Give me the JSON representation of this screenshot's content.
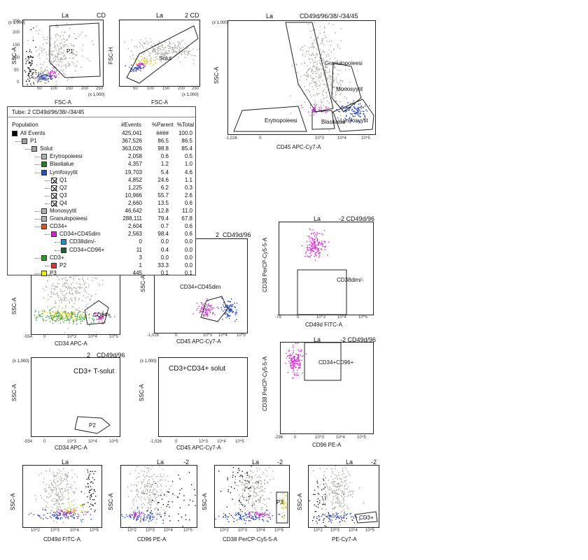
{
  "chart_data": [
    {
      "type": "scatter",
      "id": "p1",
      "header": "La",
      "header2": "CD",
      "xlabel": "FSC-A",
      "ylabel": "SSC-A",
      "x_ticks": [
        "50",
        "100",
        "150",
        "200",
        "250"
      ],
      "y_ticks": [
        "0",
        "50",
        "100",
        "150",
        "200",
        "250"
      ],
      "scale_label": "(x 1,000)",
      "gates": [
        "P1"
      ],
      "pops": [
        {
          "color": "#a8a8a0",
          "cx": 0.45,
          "cy": 0.5,
          "sx": 0.15,
          "sy": 0.22,
          "n": 260
        },
        {
          "color": "#7a7a72",
          "cx": 0.2,
          "cy": 0.85,
          "sx": 0.06,
          "sy": 0.05,
          "n": 70
        },
        {
          "color": "#2040c0",
          "cx": 0.28,
          "cy": 0.85,
          "sx": 0.06,
          "sy": 0.03,
          "n": 50
        },
        {
          "color": "#d020d0",
          "cx": 0.35,
          "cy": 0.82,
          "sx": 0.04,
          "sy": 0.03,
          "n": 25
        },
        {
          "color": "#111111",
          "cx": 0.08,
          "cy": 0.75,
          "sx": 0.03,
          "sy": 0.2,
          "n": 80
        }
      ]
    },
    {
      "type": "scatter",
      "id": "solut",
      "header": "La",
      "header2": "2 CD",
      "xlabel": "FSC-A",
      "ylabel": "FSC-H",
      "x_ticks": [
        "50",
        "100",
        "150",
        "200",
        "250"
      ],
      "y_ticks": [
        "0",
        "50",
        "100",
        "150",
        "200",
        "250"
      ],
      "scale_label": "(x 1,000)",
      "gates": [
        "Solut"
      ],
      "pops": [
        {
          "color": "#a8a8a0",
          "cx": 0.55,
          "cy": 0.45,
          "sx": 0.2,
          "sy": 0.08,
          "n": 240
        },
        {
          "color": "#e0c020",
          "cx": 0.3,
          "cy": 0.62,
          "sx": 0.06,
          "sy": 0.04,
          "n": 40
        },
        {
          "color": "#d020d0",
          "cx": 0.25,
          "cy": 0.68,
          "sx": 0.04,
          "sy": 0.03,
          "n": 25
        },
        {
          "color": "#2040c0",
          "cx": 0.2,
          "cy": 0.72,
          "sx": 0.05,
          "sy": 0.03,
          "n": 40
        }
      ]
    },
    {
      "type": "scatter",
      "id": "cd45ssc",
      "header": "La",
      "header2": "CD49d/96/38/-/34/45",
      "xlabel": "CD45 APC-Cy7-A",
      "ylabel": "SSC-A",
      "x_ticks": [
        "-1,026",
        "0",
        "10^3",
        "10^4",
        "10^5"
      ],
      "y_ticks": [
        "0",
        "50",
        "100",
        "150",
        "200",
        "250"
      ],
      "scale_label": "(x 1,000)",
      "gates": [
        "Granulopoieesi",
        "Monosyytit",
        "Erytropoieesi",
        "Blastialue",
        "Lymfosyytit"
      ],
      "pops": [
        {
          "color": "#a8a8a0",
          "cx": 0.62,
          "cy": 0.4,
          "sx": 0.07,
          "sy": 0.18,
          "n": 320
        },
        {
          "color": "#2040c0",
          "cx": 0.85,
          "cy": 0.8,
          "sx": 0.05,
          "sy": 0.04,
          "n": 120
        },
        {
          "color": "#d020d0",
          "cx": 0.6,
          "cy": 0.78,
          "sx": 0.04,
          "sy": 0.02,
          "n": 40
        },
        {
          "color": "#a8a8a0",
          "cx": 0.75,
          "cy": 0.6,
          "sx": 0.05,
          "sy": 0.08,
          "n": 60
        }
      ]
    },
    {
      "type": "scatter",
      "id": "cd34ssc",
      "header": "",
      "header2": "",
      "xlabel": "CD34 APC-A",
      "ylabel": "SSC-A",
      "x_ticks": [
        "-554",
        "0",
        "10^3",
        "10^4",
        "10^5"
      ],
      "y_ticks": [],
      "scale_label": "",
      "gates": [
        "CD34+"
      ],
      "pops": [
        {
          "color": "#a8a8a0",
          "cx": 0.4,
          "cy": 0.3,
          "sx": 0.15,
          "sy": 0.2,
          "n": 260
        },
        {
          "color": "#30a030",
          "cx": 0.4,
          "cy": 0.72,
          "sx": 0.2,
          "sy": 0.04,
          "n": 200
        },
        {
          "color": "#e0d020",
          "cx": 0.35,
          "cy": 0.68,
          "sx": 0.15,
          "sy": 0.04,
          "n": 60
        },
        {
          "color": "#d020d0",
          "cx": 0.78,
          "cy": 0.72,
          "sx": 0.05,
          "sy": 0.04,
          "n": 40
        }
      ]
    },
    {
      "type": "scatter",
      "id": "cd34cd45",
      "header": "2",
      "header2": "CD49d/96",
      "xlabel": "CD45 APC-Cy7-A",
      "ylabel": "SSC-A",
      "x_ticks": [
        "-1,026",
        "0",
        "10^3",
        "10^4",
        "10^5"
      ],
      "y_ticks": [],
      "scale_label": "",
      "gates": [
        "CD34+CD45dim"
      ],
      "pops": [
        {
          "color": "#d020d0",
          "cx": 0.55,
          "cy": 0.75,
          "sx": 0.05,
          "sy": 0.04,
          "n": 80
        },
        {
          "color": "#2040c0",
          "cx": 0.8,
          "cy": 0.75,
          "sx": 0.04,
          "sy": 0.05,
          "n": 90
        }
      ]
    },
    {
      "type": "scatter",
      "id": "cd49dcd38",
      "header": "La",
      "header2": "-2 CD49d/96",
      "xlabel": "CD49d FITC-A",
      "ylabel": "CD38 PerCP-Cy5-5-A",
      "x_ticks": [
        "-79",
        "0",
        "10^3",
        "10^4",
        "10^5"
      ],
      "y_ticks": [],
      "scale_label": "",
      "gates": [
        "CD38dim/-"
      ],
      "pops": [
        {
          "color": "#d020d0",
          "cx": 0.38,
          "cy": 0.25,
          "sx": 0.06,
          "sy": 0.07,
          "n": 150
        }
      ]
    },
    {
      "type": "scatter",
      "id": "cd3t",
      "header": "2",
      "header2": "CD49d/96",
      "xlabel": "CD34 APC-A",
      "ylabel": "SSC-A",
      "x_ticks": [
        "-554",
        "0",
        "10^3",
        "10^4",
        "10^5"
      ],
      "y_ticks": [
        "0",
        "50",
        "100",
        "150",
        "200",
        "250"
      ],
      "scale_label": "(x 1,000)",
      "title": "CD3+ T-solut",
      "gates": [
        "P2"
      ],
      "pops": []
    },
    {
      "type": "scatter",
      "id": "cd3cd34",
      "header": "",
      "header2": "",
      "xlabel": "CD45 APC-Cy7-A",
      "ylabel": "SSC-A",
      "x_ticks": [
        "-1,026",
        "0",
        "10^3",
        "10^4",
        "10^5"
      ],
      "y_ticks": [
        "0",
        "50",
        "100",
        "150",
        "200",
        "250"
      ],
      "scale_label": "(x 1,000)",
      "title": "CD3+CD34+ solut",
      "gates": [],
      "pops": []
    },
    {
      "type": "scatter",
      "id": "cd96cd38",
      "header": "La",
      "header2": "-2 CD49d/96",
      "xlabel": "CD96 PE-A",
      "ylabel": "CD38 PerCP-Cy5-5-A",
      "x_ticks": [
        "-296",
        "0",
        "10^3",
        "10^4",
        "10^5"
      ],
      "y_ticks": [],
      "scale_label": "",
      "gates": [
        "CD34+CD96+"
      ],
      "pops": [
        {
          "color": "#d020d0",
          "cx": 0.15,
          "cy": 0.2,
          "sx": 0.04,
          "sy": 0.08,
          "n": 140
        }
      ]
    },
    {
      "type": "scatter",
      "id": "b1",
      "header": "La",
      "header2": "",
      "xlabel": "CD49d FITC-A",
      "ylabel": "SSC-A",
      "x_ticks": [
        "10^2",
        "10^3",
        "10^4",
        "10^5"
      ],
      "y_ticks": [],
      "scale_label": "",
      "gates": [],
      "pops": [
        {
          "color": "#a8a8a0",
          "cx": 0.45,
          "cy": 0.4,
          "sx": 0.12,
          "sy": 0.22,
          "n": 220
        },
        {
          "color": "#2040c0",
          "cx": 0.5,
          "cy": 0.8,
          "sx": 0.18,
          "sy": 0.04,
          "n": 90
        },
        {
          "color": "#d020d0",
          "cx": 0.55,
          "cy": 0.76,
          "sx": 0.1,
          "sy": 0.03,
          "n": 40
        },
        {
          "color": "#e0d020",
          "cx": 0.65,
          "cy": 0.7,
          "sx": 0.08,
          "sy": 0.04,
          "n": 40
        },
        {
          "color": "#111111",
          "cx": 0.85,
          "cy": 0.35,
          "sx": 0.04,
          "sy": 0.2,
          "n": 60
        }
      ]
    },
    {
      "type": "scatter",
      "id": "b2",
      "header": "La",
      "header2": "-2",
      "xlabel": "CD96 PE-A",
      "ylabel": "SSC-A",
      "x_ticks": [
        "10^2",
        "10^3",
        "10^4",
        "10^5"
      ],
      "y_ticks": [],
      "scale_label": "",
      "gates": [],
      "pops": [
        {
          "color": "#a8a8a0",
          "cx": 0.35,
          "cy": 0.4,
          "sx": 0.12,
          "sy": 0.22,
          "n": 220
        },
        {
          "color": "#2040c0",
          "cx": 0.3,
          "cy": 0.82,
          "sx": 0.12,
          "sy": 0.04,
          "n": 80
        },
        {
          "color": "#d020d0",
          "cx": 0.2,
          "cy": 0.8,
          "sx": 0.05,
          "sy": 0.03,
          "n": 20
        },
        {
          "color": "#111111",
          "cx": 0.7,
          "cy": 0.55,
          "sx": 0.2,
          "sy": 0.25,
          "n": 60
        }
      ]
    },
    {
      "type": "scatter",
      "id": "b3",
      "header": "La",
      "header2": "-2",
      "xlabel": "CD38 PerCP-Cy5-5-A",
      "ylabel": "SSC-A",
      "x_ticks": [
        "10^2",
        "10^3",
        "10^4",
        "10^5"
      ],
      "y_ticks": [],
      "scale_label": "",
      "gates": [
        "P3"
      ],
      "pops": [
        {
          "color": "#a8a8a0",
          "cx": 0.5,
          "cy": 0.4,
          "sx": 0.12,
          "sy": 0.22,
          "n": 220
        },
        {
          "color": "#2040c0",
          "cx": 0.45,
          "cy": 0.82,
          "sx": 0.2,
          "sy": 0.04,
          "n": 90
        },
        {
          "color": "#d020d0",
          "cx": 0.6,
          "cy": 0.78,
          "sx": 0.08,
          "sy": 0.03,
          "n": 40
        },
        {
          "color": "#e0d020",
          "cx": 0.92,
          "cy": 0.62,
          "sx": 0.02,
          "sy": 0.1,
          "n": 40
        },
        {
          "color": "#111111",
          "cx": 0.3,
          "cy": 0.3,
          "sx": 0.12,
          "sy": 0.25,
          "n": 70
        }
      ]
    },
    {
      "type": "scatter",
      "id": "b4",
      "header": "La",
      "header2": "-2",
      "xlabel": "PE-Cy7-A",
      "ylabel": "SSC-A",
      "x_ticks": [
        "10^2",
        "10^3",
        "10^4",
        "10^5"
      ],
      "y_ticks": [],
      "scale_label": "",
      "gates": [
        "CD3+"
      ],
      "pops": [
        {
          "color": "#a8a8a0",
          "cx": 0.4,
          "cy": 0.4,
          "sx": 0.12,
          "sy": 0.22,
          "n": 220
        },
        {
          "color": "#2040c0",
          "cx": 0.4,
          "cy": 0.82,
          "sx": 0.15,
          "sy": 0.04,
          "n": 80
        },
        {
          "color": "#111111",
          "cx": 0.15,
          "cy": 0.6,
          "sx": 0.06,
          "sy": 0.25,
          "n": 50
        }
      ]
    }
  ],
  "hierarchy": {
    "tube_label": "Tube:",
    "tube_name": "2 CD49d/96/38/-/34/45",
    "columns": [
      "Population",
      "#Events",
      "%Parent",
      "%Total"
    ],
    "rows": [
      {
        "name": "All Events",
        "events": "425,041",
        "parent": "####",
        "total": "100.0",
        "color": "#000000",
        "indent": 0,
        "mark": ""
      },
      {
        "name": "P1",
        "events": "367,526",
        "parent": "86.5",
        "total": "86.5",
        "color": "#a0a0a0",
        "indent": 1,
        "mark": ""
      },
      {
        "name": "Solut",
        "events": "363,026",
        "parent": "98.8",
        "total": "85.4",
        "color": "#a0a0a0",
        "indent": 2,
        "mark": ""
      },
      {
        "name": "Erytropoieesi",
        "events": "2,058",
        "parent": "0.6",
        "total": "0.5",
        "color": "#b0b0b0",
        "indent": 3,
        "mark": ""
      },
      {
        "name": "Blastialue",
        "events": "4,357",
        "parent": "1.2",
        "total": "1.0",
        "color": "#208020",
        "indent": 3,
        "mark": ""
      },
      {
        "name": "Lymfosyytit",
        "events": "19,703",
        "parent": "5.4",
        "total": "4.6",
        "color": "#2050c0",
        "indent": 3,
        "mark": ""
      },
      {
        "name": "Q1",
        "events": "4,852",
        "parent": "24.6",
        "total": "1.1",
        "color": "#ffffff",
        "indent": 4,
        "mark": "x"
      },
      {
        "name": "Q2",
        "events": "1,225",
        "parent": "6.2",
        "total": "0.3",
        "color": "#ffffff",
        "indent": 4,
        "mark": "x"
      },
      {
        "name": "Q3",
        "events": "10,966",
        "parent": "55.7",
        "total": "2.6",
        "color": "#ffffff",
        "indent": 4,
        "mark": "x"
      },
      {
        "name": "Q4",
        "events": "2,660",
        "parent": "13.5",
        "total": "0.6",
        "color": "#ffffff",
        "indent": 4,
        "mark": "x"
      },
      {
        "name": "Monosyytit",
        "events": "46,642",
        "parent": "12.8",
        "total": "11.0",
        "color": "#b0b0b0",
        "indent": 3,
        "mark": ""
      },
      {
        "name": "Granulopoieesi",
        "events": "288,111",
        "parent": "79.4",
        "total": "67.8",
        "color": "#b0b0b0",
        "indent": 3,
        "mark": ""
      },
      {
        "name": "CD34+",
        "events": "2,604",
        "parent": "0.7",
        "total": "0.6",
        "color": "#e05020",
        "indent": 3,
        "mark": ""
      },
      {
        "name": "CD34+CD45dim",
        "events": "2,563",
        "parent": "98.4",
        "total": "0.6",
        "color": "#d020d0",
        "indent": 4,
        "mark": ""
      },
      {
        "name": "CD38dim/-",
        "events": "0",
        "parent": "0.0",
        "total": "0.0",
        "color": "#2090d0",
        "indent": 5,
        "mark": ""
      },
      {
        "name": "CD34+CD96+",
        "events": "11",
        "parent": "0.4",
        "total": "0.0",
        "color": "#206030",
        "indent": 5,
        "mark": ""
      },
      {
        "name": "CD3+",
        "events": "3",
        "parent": "0.0",
        "total": "0.0",
        "color": "#20a020",
        "indent": 3,
        "mark": ""
      },
      {
        "name": "P2",
        "events": "1",
        "parent": "33.3",
        "total": "0.0",
        "color": "#e03030",
        "indent": 4,
        "mark": ""
      },
      {
        "name": "P3",
        "events": "445",
        "parent": "0.1",
        "total": "0.1",
        "color": "#f0f000",
        "indent": 3,
        "mark": ""
      }
    ]
  }
}
